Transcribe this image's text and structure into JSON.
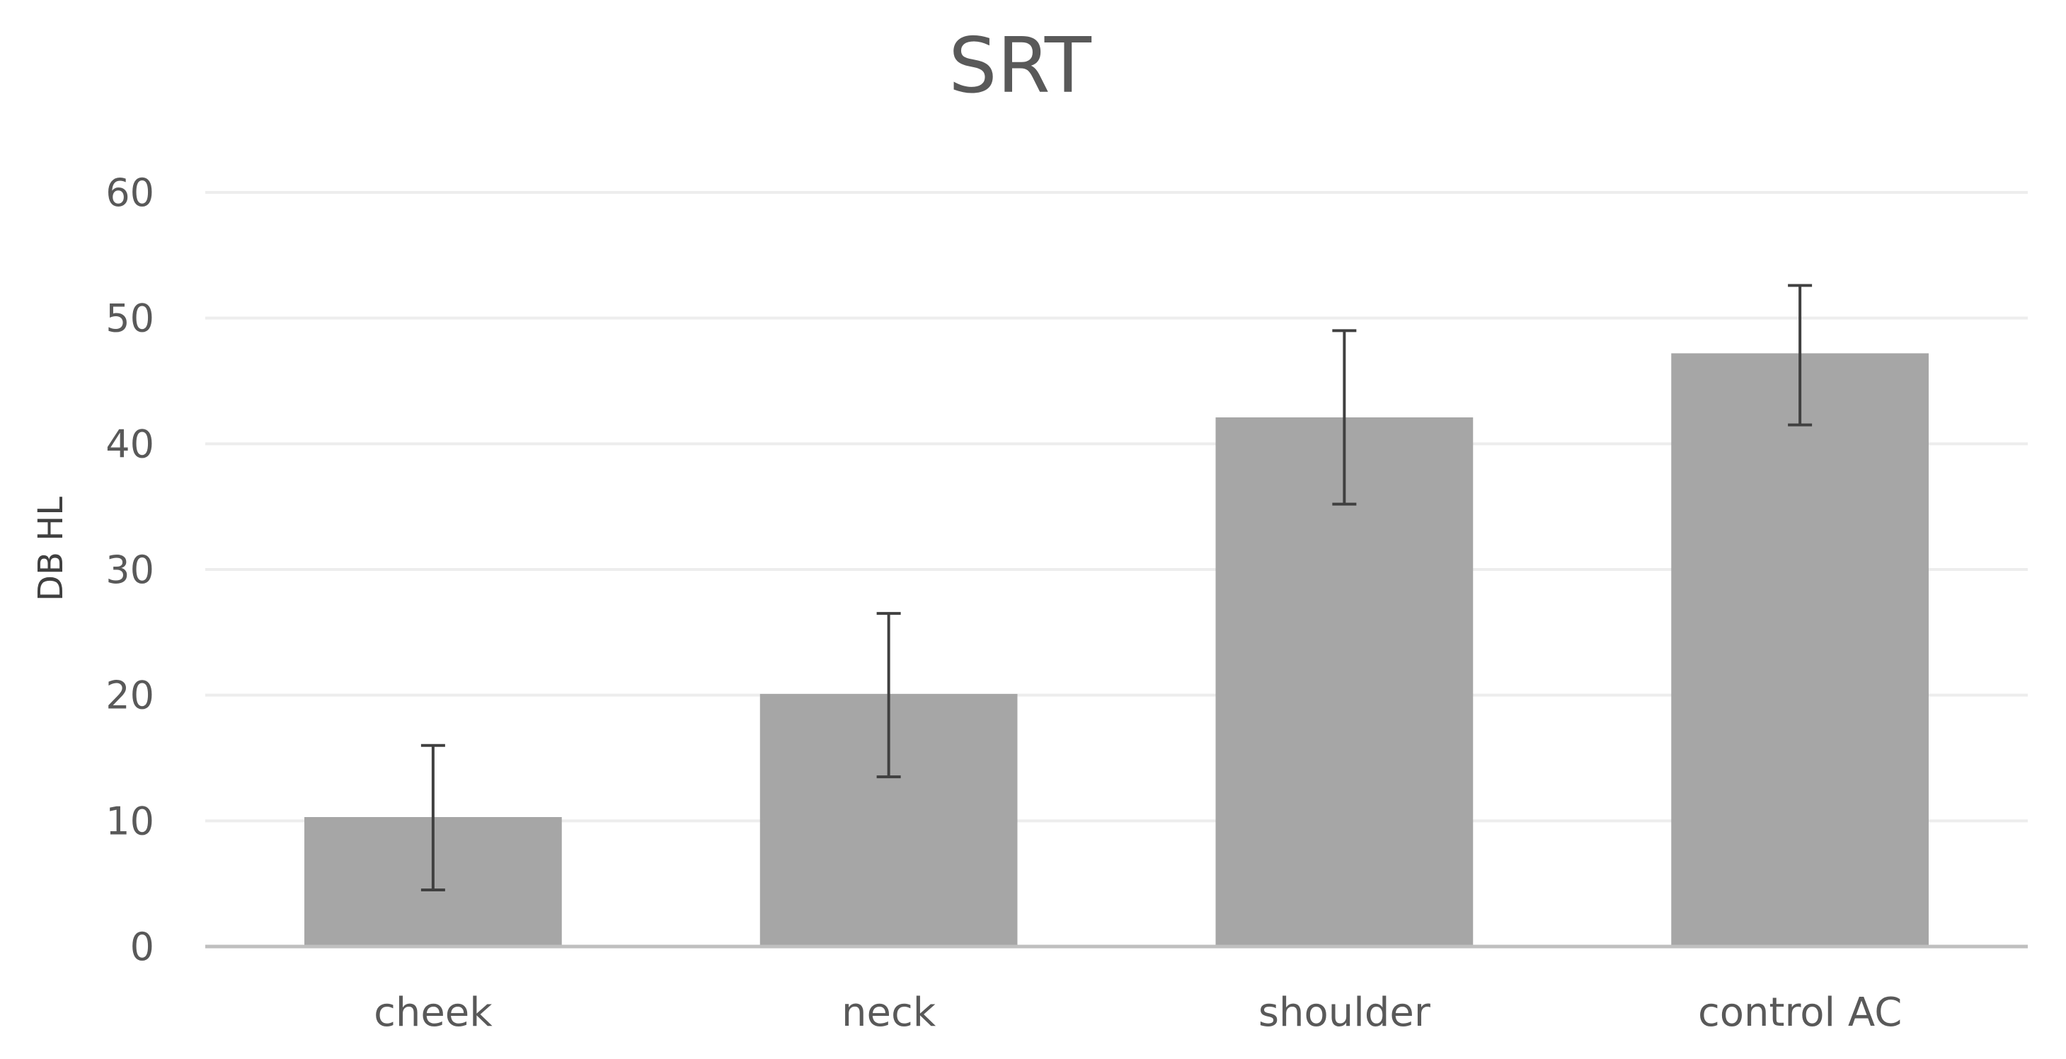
{
  "chart_data": {
    "type": "bar",
    "title": "SRT",
    "xlabel": "",
    "ylabel": "DB HL",
    "categories": [
      "cheek",
      "neck",
      "shoulder",
      "control AC"
    ],
    "values": [
      10.3,
      20.1,
      42.1,
      47.2
    ],
    "error_low": [
      4.5,
      13.5,
      35.2,
      41.5
    ],
    "error_high": [
      16.0,
      26.5,
      49.0,
      52.6
    ],
    "ylim": [
      0,
      60
    ],
    "yticks": [
      "0",
      "10",
      "20",
      "30",
      "40",
      "50",
      "60"
    ],
    "grid": true,
    "legend": "none",
    "colors": {
      "bar": "#a6a6a6",
      "error_bar": "#404040",
      "grid": "#ededed",
      "axis": "#bfbfbf",
      "text": "#595959"
    }
  }
}
